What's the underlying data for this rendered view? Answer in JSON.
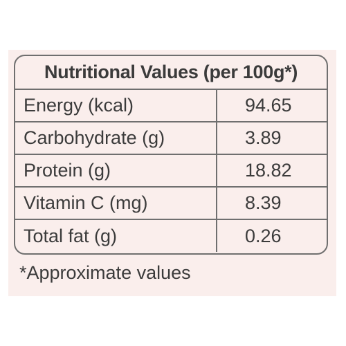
{
  "table": {
    "title": "Nutritional Values (per 100g*)",
    "rows": [
      {
        "label": "Energy (kcal)",
        "value": "94.65"
      },
      {
        "label": "Carbohydrate (g)",
        "value": "3.89"
      },
      {
        "label": "Protein (g)",
        "value": "18.82"
      },
      {
        "label": "Vitamin C (mg)",
        "value": "8.39"
      },
      {
        "label": "Total fat (g)",
        "value": "0.26"
      }
    ]
  },
  "footnote": "*Approximate values",
  "colors": {
    "panel_background": "#faeeec",
    "border": "#6f6f6f",
    "text": "#3b3b3b"
  }
}
